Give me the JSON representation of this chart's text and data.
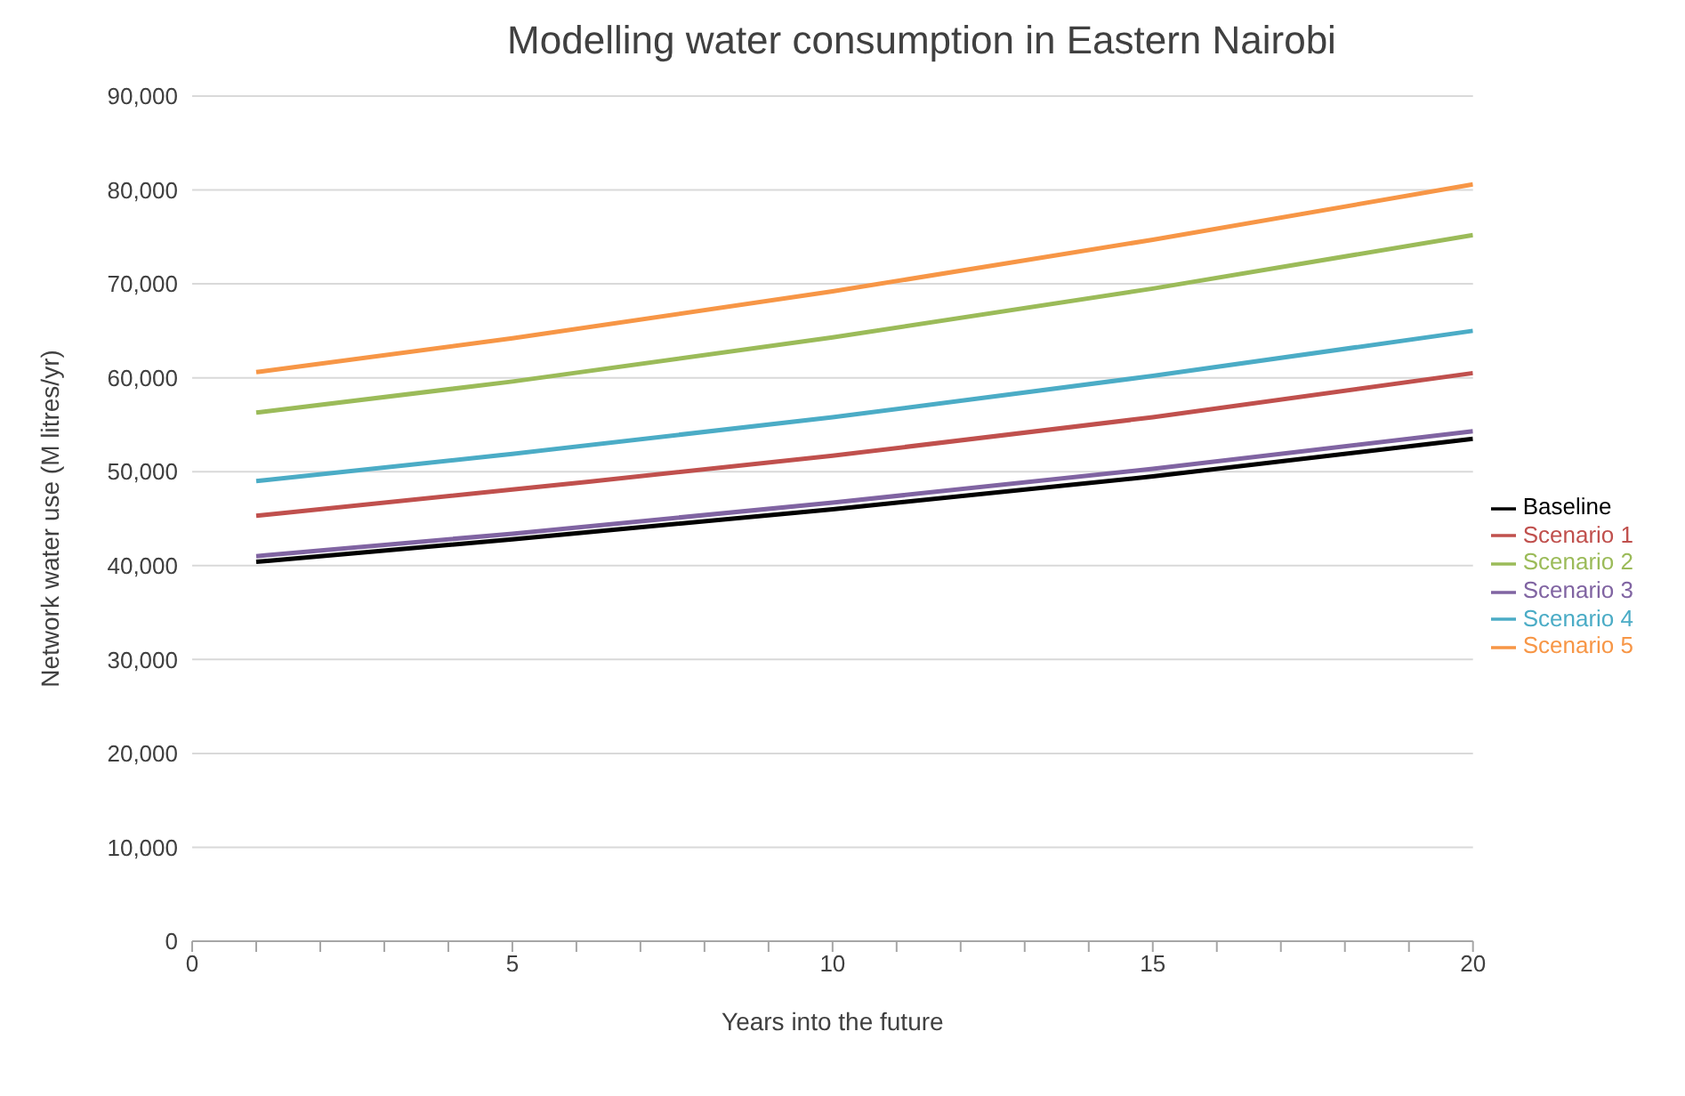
{
  "chart_data": {
    "type": "line",
    "title": "Modelling water consumption in Eastern Nairobi",
    "xlabel": "Years into the future",
    "ylabel": "Network water use (M litres/yr)",
    "x": [
      1,
      5,
      10,
      15,
      20
    ],
    "series": [
      {
        "name": "Baseline",
        "color": "#000000",
        "values": [
          40400,
          42800,
          46000,
          49500,
          53500
        ]
      },
      {
        "name": "Scenario 1",
        "color": "#c0504d",
        "values": [
          45300,
          48100,
          51700,
          55800,
          60500
        ]
      },
      {
        "name": "Scenario 2",
        "color": "#9bbb59",
        "values": [
          56300,
          59600,
          64300,
          69500,
          75200
        ]
      },
      {
        "name": "Scenario 3",
        "color": "#8064a2",
        "values": [
          41000,
          43400,
          46700,
          50300,
          54300
        ]
      },
      {
        "name": "Scenario 4",
        "color": "#4bacc6",
        "values": [
          49000,
          51900,
          55800,
          60200,
          65000
        ]
      },
      {
        "name": "Scenario 5",
        "color": "#f79646",
        "values": [
          60600,
          64200,
          69200,
          74700,
          80600
        ]
      }
    ],
    "xlim": [
      0,
      20
    ],
    "xticks": [
      0,
      {
        "value": 1,
        "label": null
      },
      {
        "value": 2,
        "label": null
      },
      {
        "value": 3,
        "label": null
      },
      {
        "value": 4,
        "label": null
      },
      5,
      {
        "value": 6,
        "label": null
      },
      {
        "value": 7,
        "label": null
      },
      {
        "value": 8,
        "label": null
      },
      {
        "value": 9,
        "label": null
      },
      10,
      {
        "value": 11,
        "label": null
      },
      {
        "value": 12,
        "label": null
      },
      {
        "value": 13,
        "label": null
      },
      {
        "value": 14,
        "label": null
      },
      15,
      {
        "value": 16,
        "label": null
      },
      {
        "value": 17,
        "label": null
      },
      {
        "value": 18,
        "label": null
      },
      {
        "value": 19,
        "label": null
      },
      20
    ],
    "ylim": [
      0,
      90000
    ],
    "yticks": [
      {
        "value": 0,
        "label": "0"
      },
      {
        "value": 10000,
        "label": "10,000"
      },
      {
        "value": 20000,
        "label": "20,000"
      },
      {
        "value": 30000,
        "label": "30,000"
      },
      {
        "value": 40000,
        "label": "40,000"
      },
      {
        "value": 50000,
        "label": "50,000"
      },
      {
        "value": 60000,
        "label": "60,000"
      },
      {
        "value": 70000,
        "label": "70,000"
      },
      {
        "value": 80000,
        "label": "80,000"
      },
      {
        "value": 90000,
        "label": "90,000"
      }
    ],
    "grid": "y",
    "legend": "right",
    "marker": "none",
    "line_style": "solid"
  }
}
